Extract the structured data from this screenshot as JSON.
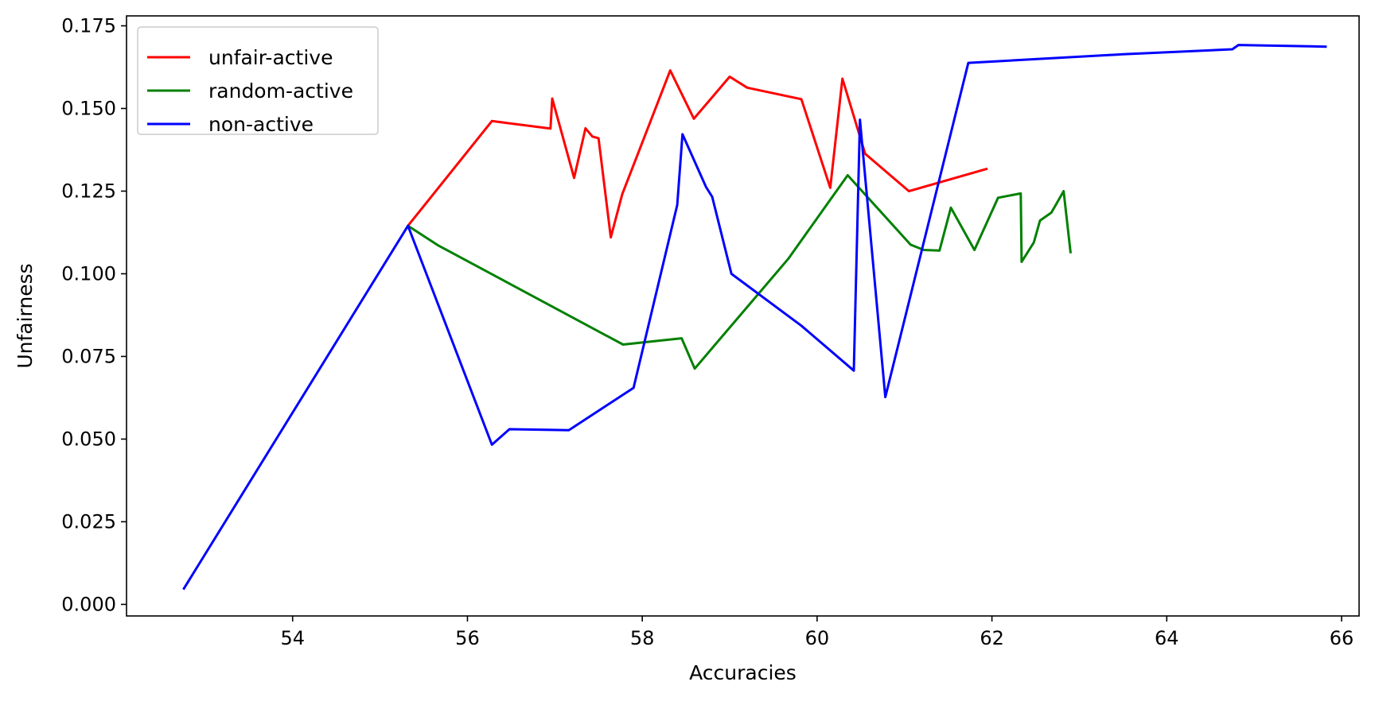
{
  "chart_data": {
    "type": "line",
    "title": "",
    "xlabel": "Accuracies",
    "ylabel": "Unfairness",
    "xlim": [
      52.1,
      66.2
    ],
    "ylim": [
      -0.0035,
      0.178
    ],
    "xticks": [
      54,
      56,
      58,
      60,
      62,
      64,
      66
    ],
    "yticks": [
      0.0,
      0.025,
      0.05,
      0.075,
      0.1,
      0.125,
      0.15,
      0.175
    ],
    "xtick_labels": [
      "54",
      "56",
      "58",
      "60",
      "62",
      "64",
      "66"
    ],
    "ytick_labels": [
      "0.000",
      "0.025",
      "0.050",
      "0.075",
      "0.100",
      "0.125",
      "0.150",
      "0.175"
    ],
    "grid": false,
    "legend_position": "top-left",
    "series": [
      {
        "name": "unfair-active",
        "color": "#ff0000",
        "points": [
          [
            55.32,
            0.1145
          ],
          [
            56.28,
            0.1462
          ],
          [
            56.95,
            0.1439
          ],
          [
            56.97,
            0.153
          ],
          [
            57.22,
            0.129
          ],
          [
            57.35,
            0.144
          ],
          [
            57.43,
            0.1415
          ],
          [
            57.5,
            0.141
          ],
          [
            57.64,
            0.111
          ],
          [
            57.77,
            0.124
          ],
          [
            58.32,
            0.1615
          ],
          [
            58.59,
            0.1469
          ],
          [
            59.0,
            0.1596
          ],
          [
            59.2,
            0.1563
          ],
          [
            59.82,
            0.1528
          ],
          [
            60.15,
            0.126
          ],
          [
            60.29,
            0.159
          ],
          [
            60.55,
            0.1363
          ],
          [
            61.05,
            0.125
          ],
          [
            61.95,
            0.1318
          ]
        ]
      },
      {
        "name": "random-active",
        "color": "#008000",
        "points": [
          [
            55.32,
            0.1145
          ],
          [
            55.67,
            0.1085
          ],
          [
            57.78,
            0.0786
          ],
          [
            58.45,
            0.0805
          ],
          [
            58.6,
            0.0713
          ],
          [
            59.67,
            0.1045
          ],
          [
            60.35,
            0.1298
          ],
          [
            61.07,
            0.1088
          ],
          [
            61.22,
            0.1072
          ],
          [
            61.4,
            0.107
          ],
          [
            61.53,
            0.12
          ],
          [
            61.8,
            0.1072
          ],
          [
            62.07,
            0.123
          ],
          [
            62.33,
            0.1243
          ],
          [
            62.34,
            0.1036
          ],
          [
            62.48,
            0.1095
          ],
          [
            62.55,
            0.1161
          ],
          [
            62.68,
            0.1185
          ],
          [
            62.82,
            0.125
          ],
          [
            62.9,
            0.1062
          ]
        ]
      },
      {
        "name": "non-active",
        "color": "#0000ff",
        "points": [
          [
            52.75,
            0.0045
          ],
          [
            55.32,
            0.1145
          ],
          [
            56.28,
            0.0483
          ],
          [
            56.48,
            0.053
          ],
          [
            57.16,
            0.0527
          ],
          [
            57.9,
            0.0655
          ],
          [
            58.4,
            0.1208
          ],
          [
            58.46,
            0.1422
          ],
          [
            58.73,
            0.1262
          ],
          [
            58.8,
            0.1233
          ],
          [
            59.02,
            0.1
          ],
          [
            59.82,
            0.0843
          ],
          [
            60.42,
            0.0707
          ],
          [
            60.49,
            0.1466
          ],
          [
            60.78,
            0.0627
          ],
          [
            61.73,
            0.1638
          ],
          [
            63.5,
            0.1664
          ],
          [
            64.75,
            0.1679
          ],
          [
            64.82,
            0.1692
          ],
          [
            65.83,
            0.1687
          ]
        ]
      }
    ]
  }
}
